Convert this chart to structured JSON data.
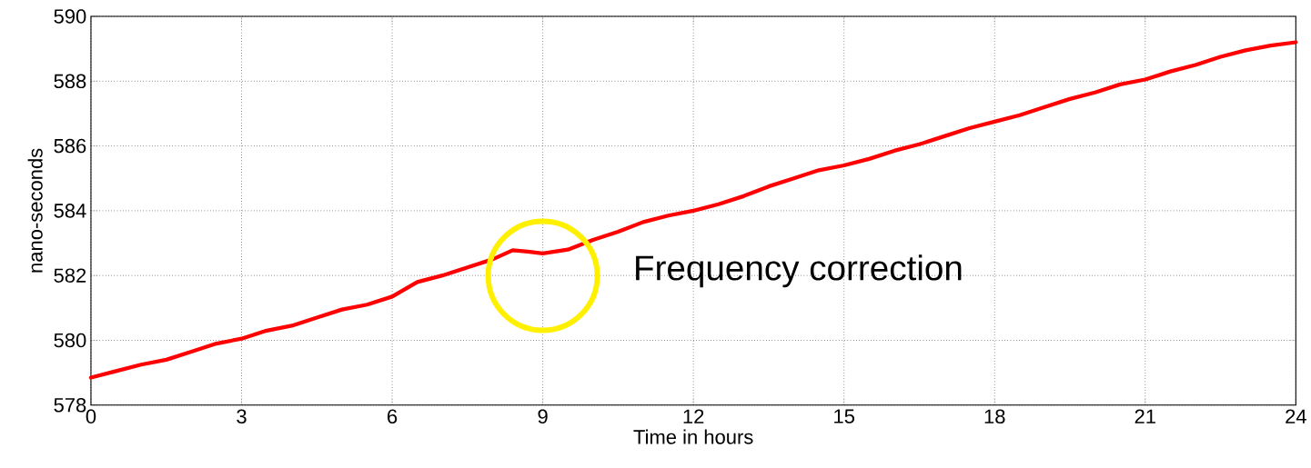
{
  "chart_data": {
    "type": "line",
    "xlabel": "Time in hours",
    "ylabel": "nano-seconds",
    "x": [
      0,
      0.5,
      1,
      1.5,
      2,
      2.5,
      3,
      3.5,
      4,
      4.5,
      5,
      5.5,
      6,
      6.5,
      7,
      7.5,
      8,
      8.4,
      8.7,
      9,
      9.5,
      10,
      10.5,
      11,
      11.5,
      12,
      12.5,
      13,
      13.5,
      14,
      14.5,
      15,
      15.5,
      16,
      16.5,
      17,
      17.5,
      18,
      18.5,
      19,
      19.5,
      20,
      20.5,
      21,
      21.5,
      22,
      22.5,
      23,
      23.5,
      24
    ],
    "series": [
      {
        "color": "#ff0000",
        "values": [
          578.85,
          579.05,
          579.25,
          579.4,
          579.65,
          579.9,
          580.05,
          580.3,
          580.45,
          580.7,
          580.95,
          581.1,
          581.35,
          581.8,
          582.0,
          582.25,
          582.5,
          582.78,
          582.74,
          582.68,
          582.8,
          583.1,
          583.35,
          583.65,
          583.85,
          584.0,
          584.2,
          584.45,
          584.75,
          585.0,
          585.25,
          585.4,
          585.6,
          585.85,
          586.05,
          586.3,
          586.55,
          586.75,
          586.95,
          587.2,
          587.45,
          587.65,
          587.9,
          588.05,
          588.3,
          588.5,
          588.75,
          588.95,
          589.1,
          589.2
        ]
      }
    ],
    "xlim": [
      0,
      24
    ],
    "ylim": [
      578,
      590
    ],
    "xticks": [
      0,
      3,
      6,
      9,
      12,
      15,
      18,
      21,
      24
    ],
    "yticks": [
      578,
      580,
      582,
      584,
      586,
      588,
      590
    ],
    "grid": true,
    "line_style": "solid",
    "annotations": [
      {
        "text": "Frequency correction",
        "x": 9,
        "y": 582.7
      }
    ]
  }
}
